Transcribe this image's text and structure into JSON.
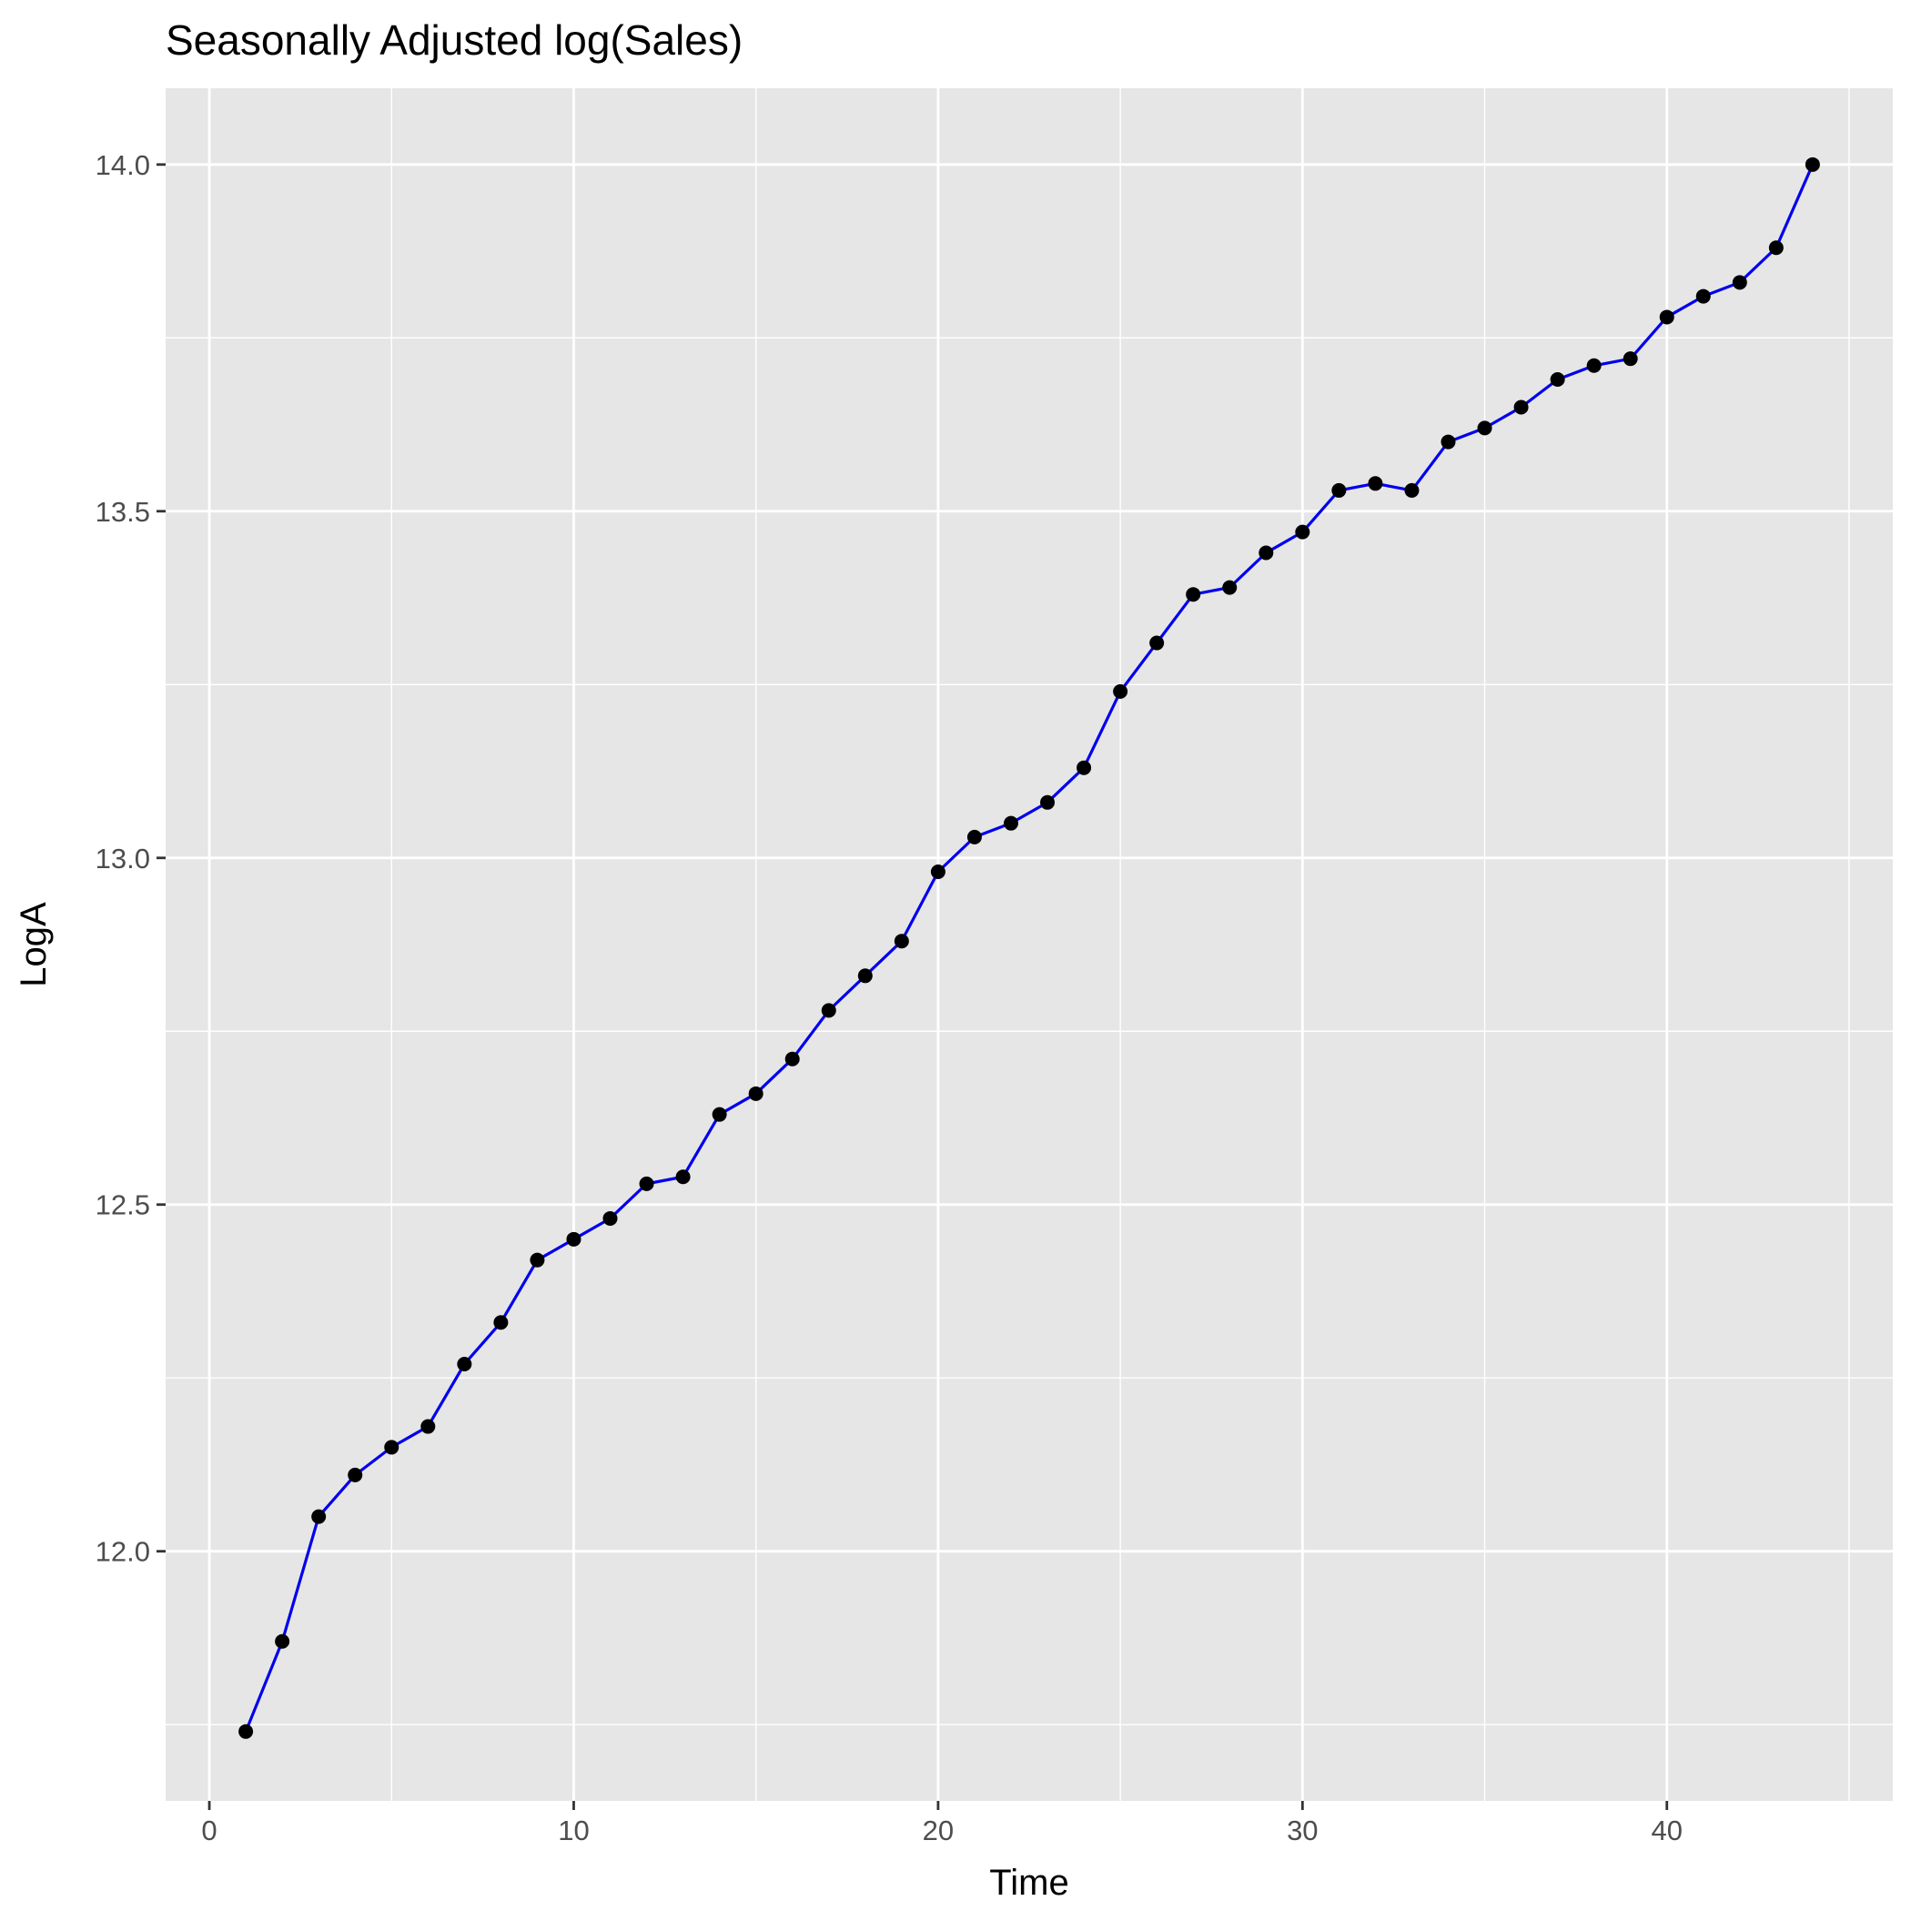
{
  "chart_data": {
    "type": "line",
    "title": "Seasonally Adjusted log(Sales)",
    "xlabel": "Time",
    "ylabel": "LogA",
    "xlim": [
      -1.2,
      46.2
    ],
    "ylim": [
      11.64,
      14.11
    ],
    "x_ticks": [
      0,
      10,
      20,
      30,
      40
    ],
    "x_minor_ticks": [
      5,
      15,
      25,
      35,
      45
    ],
    "y_ticks": [
      12.0,
      12.5,
      13.0,
      13.5,
      14.0
    ],
    "y_tick_labels": [
      "12.0",
      "12.5",
      "13.0",
      "13.5",
      "14.0"
    ],
    "y_minor_ticks": [
      11.75,
      12.25,
      12.75,
      13.25,
      13.75
    ],
    "x_tick_labels": [
      "0",
      "10",
      "20",
      "30",
      "40"
    ],
    "grid": true,
    "legend": "none",
    "colors": {
      "panel": "#e6e6e6",
      "grid": "#ffffff",
      "line": "#0000ee",
      "point": "#000000"
    },
    "series": [
      {
        "x": [
          1,
          2,
          3,
          4,
          5,
          6,
          7,
          8,
          9,
          10,
          11,
          12,
          13,
          14,
          15,
          16,
          17,
          18,
          19,
          20,
          21,
          22,
          23,
          24,
          25,
          26,
          27,
          28,
          29,
          30,
          31,
          32,
          33,
          34,
          35,
          36,
          37,
          38,
          39,
          40,
          41,
          42,
          43,
          44
        ],
        "y": [
          11.74,
          11.87,
          12.05,
          12.11,
          12.15,
          12.18,
          12.27,
          12.33,
          12.42,
          12.45,
          12.48,
          12.53,
          12.54,
          12.63,
          12.66,
          12.71,
          12.78,
          12.83,
          12.88,
          12.98,
          13.03,
          13.05,
          13.08,
          13.13,
          13.24,
          13.31,
          13.38,
          13.39,
          13.44,
          13.47,
          13.53,
          13.54,
          13.53,
          13.6,
          13.62,
          13.65,
          13.69,
          13.71,
          13.72,
          13.78,
          13.81,
          13.83,
          13.88,
          14.0
        ]
      }
    ]
  }
}
